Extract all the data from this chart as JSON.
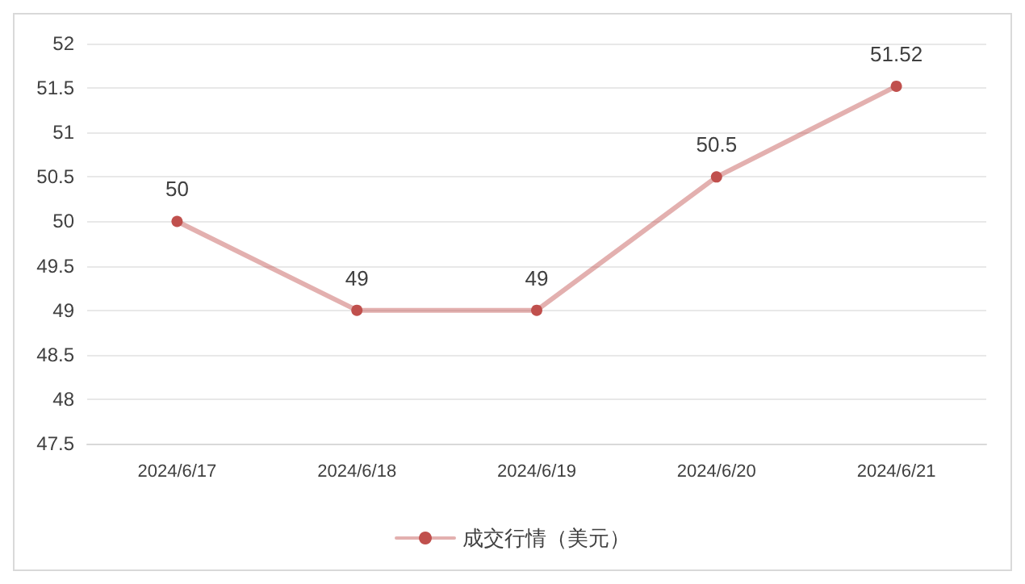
{
  "chart_data": {
    "type": "line",
    "categories": [
      "2024/6/17",
      "2024/6/18",
      "2024/6/19",
      "2024/6/20",
      "2024/6/21"
    ],
    "series": [
      {
        "name": "成交行情（美元）",
        "color": "#c0504d",
        "values": [
          50,
          49,
          49,
          50.5,
          51.52
        ]
      }
    ],
    "ylim": [
      47.5,
      52
    ],
    "yticks": [
      47.5,
      48,
      48.5,
      49,
      49.5,
      50,
      50.5,
      51,
      51.5,
      52
    ],
    "grid": "y",
    "legend": "bottom",
    "data_labels": true,
    "marker": "circle",
    "line_style": "solid"
  }
}
